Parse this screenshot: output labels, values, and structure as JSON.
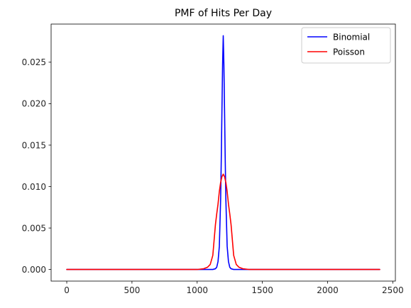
{
  "chart_data": {
    "type": "line",
    "title": "PMF of Hits Per Day",
    "xlabel": "",
    "ylabel": "",
    "xlim": [
      -120,
      2520
    ],
    "ylim": [
      -0.0014,
      0.0296
    ],
    "x_ticks": [
      0,
      500,
      1000,
      1500,
      2000,
      2500
    ],
    "x_tick_labels": [
      "0",
      "500",
      "1000",
      "1500",
      "2000",
      "2500"
    ],
    "y_ticks": [
      0.0,
      0.005,
      0.01,
      0.015,
      0.02,
      0.025
    ],
    "y_tick_labels": [
      "0.000",
      "0.005",
      "0.010",
      "0.015",
      "0.020",
      "0.025"
    ],
    "grid": false,
    "legend_position": "top-right",
    "series": [
      {
        "name": "Binomial",
        "color": "#0000ff",
        "x": [
          0,
          1000,
          1100,
          1120,
          1140,
          1150,
          1160,
          1170,
          1180,
          1185,
          1190,
          1195,
          1200,
          1205,
          1210,
          1215,
          1220,
          1230,
          1240,
          1250,
          1260,
          1280,
          1300,
          1400,
          2400
        ],
        "y": [
          0,
          0,
          5e-07,
          6e-06,
          9e-05,
          0.00027,
          0.00096,
          0.0028,
          0.0085,
          0.0134,
          0.0192,
          0.0247,
          0.0282,
          0.0247,
          0.0192,
          0.0134,
          0.0085,
          0.0028,
          0.00096,
          0.00027,
          9e-05,
          6e-06,
          5e-07,
          0,
          0
        ]
      },
      {
        "name": "Poisson",
        "color": "#ff0000",
        "x": [
          0,
          1000,
          1050,
          1080,
          1100,
          1120,
          1140,
          1150,
          1160,
          1170,
          1180,
          1190,
          1200,
          1210,
          1220,
          1230,
          1240,
          1250,
          1260,
          1280,
          1300,
          1320,
          1350,
          1400,
          2400
        ],
        "y": [
          0,
          0,
          9e-05,
          0.00028,
          0.0006,
          0.0017,
          0.0054,
          0.0067,
          0.0079,
          0.0094,
          0.0105,
          0.0112,
          0.0115,
          0.0112,
          0.0105,
          0.0094,
          0.0079,
          0.0067,
          0.0054,
          0.0017,
          0.0006,
          0.00028,
          9e-05,
          0,
          0
        ]
      }
    ]
  }
}
